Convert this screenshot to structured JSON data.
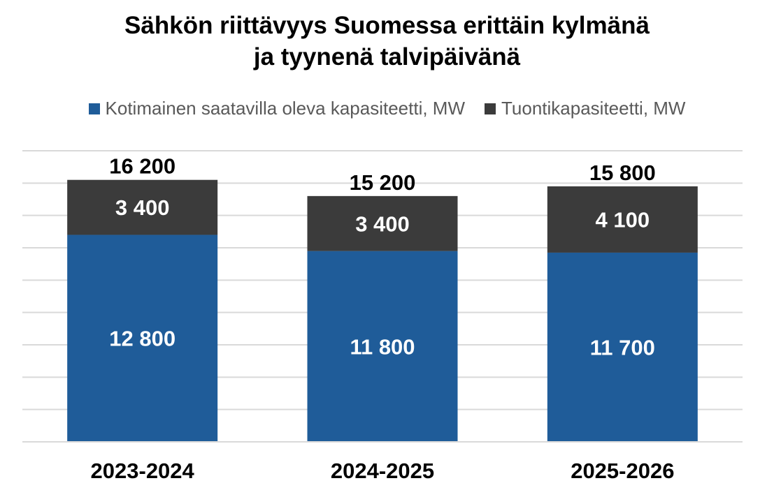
{
  "chart_data": {
    "type": "bar",
    "stacked": true,
    "title": [
      "Sähkön riittävyys Suomessa erittäin kylmänä",
      "ja tyynenä talvipäivänä"
    ],
    "categories": [
      "2023-2024",
      "2024-2025",
      "2025-2026"
    ],
    "series": [
      {
        "name": "Kotimainen saatavilla oleva kapasiteetti, MW",
        "values": [
          12800,
          11800,
          11700
        ],
        "color": "#1f5c99",
        "label_color": "#ffffff",
        "labels": [
          "12 800",
          "11 800",
          "11 700"
        ]
      },
      {
        "name": "Tuontikapasiteetti, MW",
        "values": [
          3400,
          3400,
          4100
        ],
        "color": "#3b3b3b",
        "label_color": "#ffffff",
        "labels": [
          "3 400",
          "3 400",
          "4 100"
        ]
      }
    ],
    "totals": [
      16200,
      15200,
      15800
    ],
    "total_labels": [
      "16 200",
      "15 200",
      "15 800"
    ],
    "ylim": [
      0,
      18000
    ],
    "y_gridlines": true,
    "y_tick_labels_shown": false,
    "legend_position": "top"
  }
}
